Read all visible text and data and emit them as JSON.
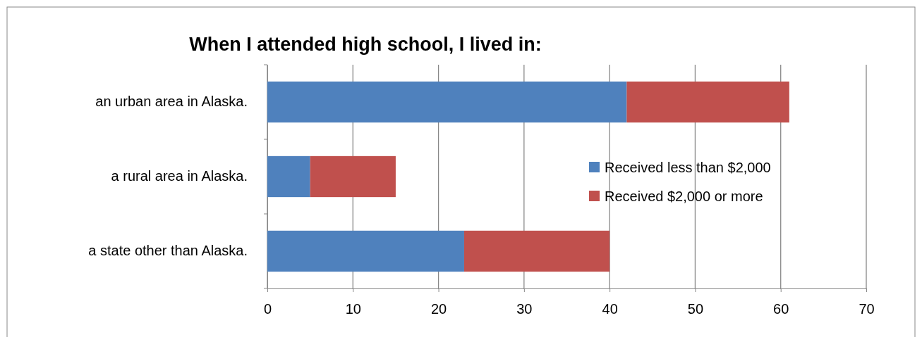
{
  "chart_data": {
    "type": "bar",
    "title": "When I attended high school, I lived in:",
    "orientation": "horizontal",
    "stacked": true,
    "categories": [
      "an urban area in Alaska.",
      "a rural area in Alaska.",
      "a state other than Alaska."
    ],
    "series": [
      {
        "name": "Received less than $2,000",
        "color": "#4f81bd",
        "values": [
          42,
          5,
          23
        ]
      },
      {
        "name": "Received $2,000 or more",
        "color": "#c0504d",
        "values": [
          19,
          10,
          17
        ]
      }
    ],
    "xlim": [
      0,
      70
    ],
    "xticks": [
      0,
      10,
      20,
      30,
      40,
      50,
      60,
      70
    ],
    "grid": "x",
    "legend": "right"
  }
}
